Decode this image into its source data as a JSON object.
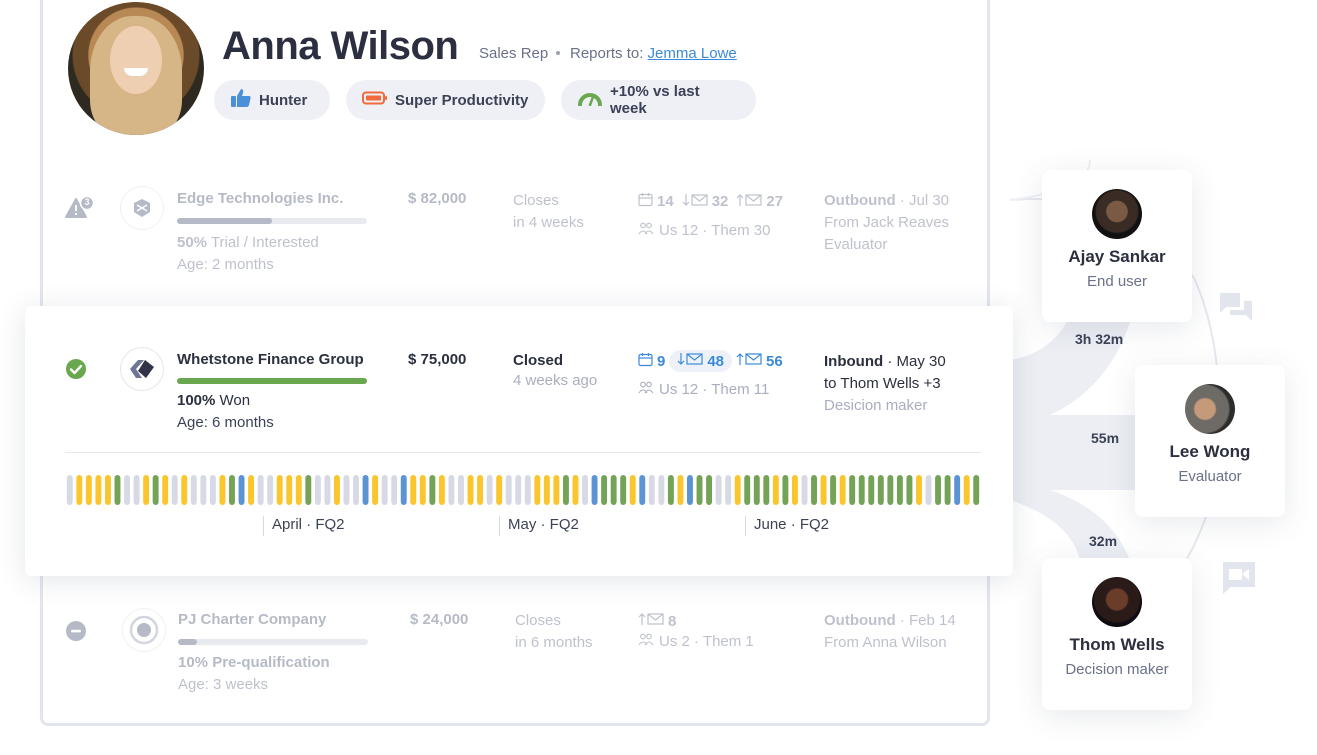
{
  "profile": {
    "name": "Anna Wilson",
    "role": "Sales Rep",
    "reports_to_label": "Reports to:",
    "manager": "Jemma Lowe",
    "badges": [
      {
        "icon": "thumbs-up-icon",
        "label": "Hunter",
        "color": "#4a90d9"
      },
      {
        "icon": "battery-icon",
        "label": "Super Productivity",
        "color": "#f06a3b"
      },
      {
        "icon": "gauge-icon",
        "label": "+10% vs last week",
        "color": "#6aa84f"
      }
    ]
  },
  "deals": [
    {
      "status_icon": "warning-icon",
      "alert_count": "3",
      "company": "Edge Technologies Inc.",
      "progress_percent": 50,
      "stage_pct": "50%",
      "stage": "Trial / Interested",
      "age": "Age: 2 months",
      "amount": "$ 82,000",
      "close_line1": "Closes",
      "close_line2": "in 4 weeks",
      "meetings": "14",
      "emails_in": "32",
      "emails_out": "27",
      "people": "Us 12 · Them 30",
      "source_type": "Outbound",
      "source_date": "· Jul 30",
      "source_line2": "From Jack Reaves",
      "source_line3": "Evaluator"
    },
    {
      "status_icon": "check-circle-icon",
      "company": "Whetstone Finance Group",
      "progress_percent": 100,
      "stage_pct": "100%",
      "stage": "Won",
      "age": "Age: 6 months",
      "amount": "$ 75,000",
      "close_line1": "Closed",
      "close_line2": "4 weeks ago",
      "meetings": "9",
      "emails_in": "48",
      "emails_out": "56",
      "people": "Us 12 · Them 11",
      "source_type": "Inbound",
      "source_date": "· May 30",
      "source_line2": "to Thom Wells +3",
      "source_line3": "Desicion maker",
      "timeline_months": [
        "April · FQ2",
        "May · FQ2",
        "June · FQ2"
      ],
      "activity_colors": {
        "g": "#d7dae4",
        "y": "#fbc52d",
        "n": "#74a257",
        "b": "#5b93d3"
      },
      "activity": "gyyyynggynygygggynbyggyyynggyggbyggbyynyggyygygggyyynygbnnnybggnybnnggynnnynygnynynnnnnnnygnnbyn"
    },
    {
      "status_icon": "minus-circle-icon",
      "company": "PJ Charter Company",
      "progress_percent": 10,
      "stage_pct": "10%",
      "stage": "Pre-qualification",
      "age": "Age: 3 weeks",
      "amount": "$ 24,000",
      "close_line1": "Closes",
      "close_line2": "in 6 months",
      "emails_out": "8",
      "people": "Us 2 · Them 1",
      "source_type": "Outbound",
      "source_date": "· Feb 14",
      "source_line2": "From Anna Wilson"
    }
  ],
  "contacts": [
    {
      "name": "Ajay Sankar",
      "role": "End user"
    },
    {
      "name": "Lee Wong",
      "role": "Evaluator"
    },
    {
      "name": "Thom Wells",
      "role": "Decision maker"
    }
  ],
  "durations": [
    "3h 32m",
    "55m",
    "32m"
  ],
  "colors": {
    "accent_blue": "#3b8ad9",
    "won_green": "#6aa84f",
    "text_dark": "#2b2f3f"
  }
}
